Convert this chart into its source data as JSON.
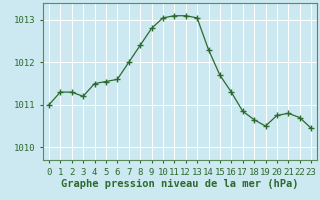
{
  "x": [
    0,
    1,
    2,
    3,
    4,
    5,
    6,
    7,
    8,
    9,
    10,
    11,
    12,
    13,
    14,
    15,
    16,
    17,
    18,
    19,
    20,
    21,
    22,
    23
  ],
  "y": [
    1011.0,
    1011.3,
    1011.3,
    1011.2,
    1011.5,
    1011.55,
    1011.6,
    1012.0,
    1012.4,
    1012.8,
    1013.05,
    1013.1,
    1013.1,
    1013.05,
    1012.3,
    1011.7,
    1011.3,
    1010.85,
    1010.65,
    1010.5,
    1010.75,
    1010.8,
    1010.7,
    1010.45
  ],
  "line_color": "#2d6a2d",
  "marker": "+",
  "marker_size": 4,
  "bg_color": "#cce8f0",
  "grid_color": "#ffffff",
  "ylabel_ticks": [
    1010,
    1011,
    1012,
    1013
  ],
  "ylim": [
    1009.7,
    1013.4
  ],
  "xlim": [
    -0.5,
    23.5
  ],
  "xlabel": "Graphe pression niveau de la mer (hPa)",
  "xlabel_fontsize": 7.5,
  "tick_fontsize": 6.5,
  "tick_color": "#2d6a2d",
  "label_color": "#2d6a2d",
  "spine_color": "#5a8a5a"
}
